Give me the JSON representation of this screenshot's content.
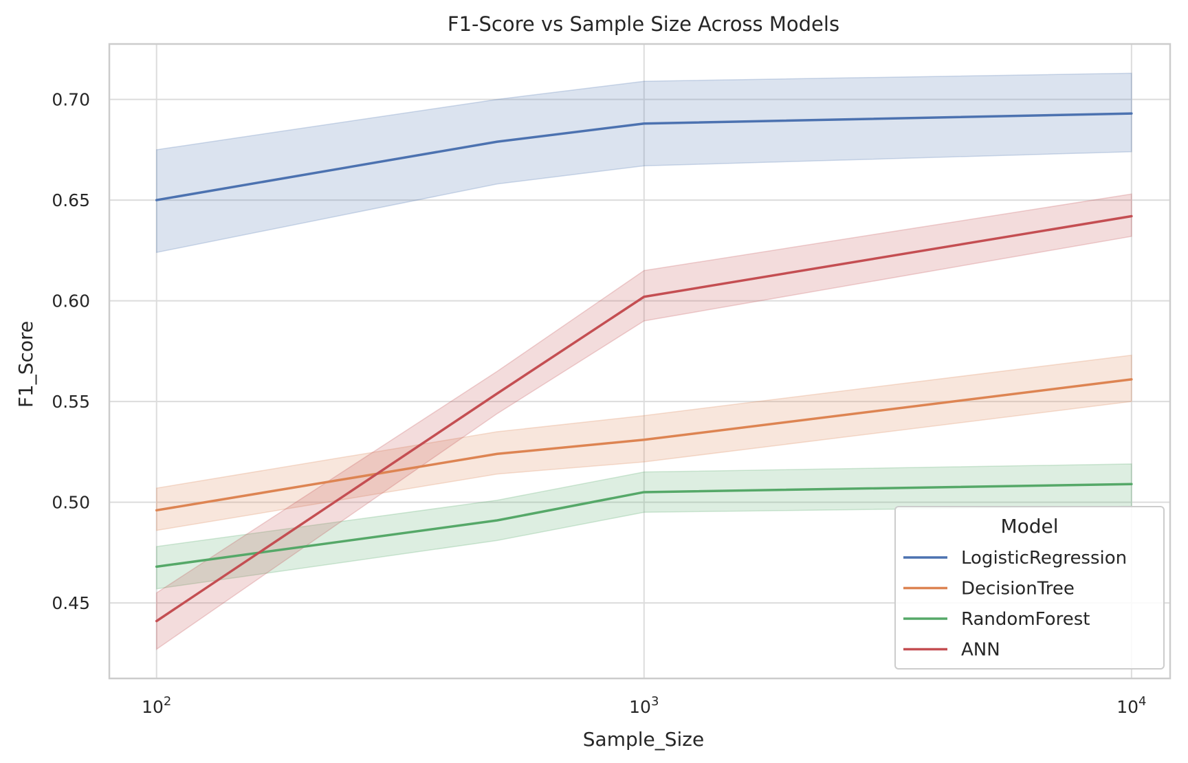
{
  "chart_data": {
    "type": "line",
    "title": "F1-Score vs Sample Size Across Models",
    "xlabel": "Sample_Size",
    "ylabel": "F1_Score",
    "x_scale": "log",
    "xlim": [
      80,
      12000
    ],
    "ylim": [
      0.4125,
      0.7275
    ],
    "x": [
      100,
      500,
      1000,
      10000
    ],
    "x_ticks": [
      {
        "value": 100,
        "base": "10",
        "exp": "2"
      },
      {
        "value": 1000,
        "base": "10",
        "exp": "3"
      },
      {
        "value": 10000,
        "base": "10",
        "exp": "4"
      }
    ],
    "y_ticks": [
      0.45,
      0.5,
      0.55,
      0.6,
      0.65,
      0.7
    ],
    "y_tick_labels": [
      "0.45",
      "0.50",
      "0.55",
      "0.60",
      "0.65",
      "0.70"
    ],
    "grid": true,
    "legend": {
      "title": "Model",
      "position": "lower-right"
    },
    "series": [
      {
        "name": "LogisticRegression",
        "color": "#4c72b0",
        "values": [
          0.65,
          0.679,
          0.688,
          0.693
        ],
        "lower": [
          0.624,
          0.658,
          0.667,
          0.674
        ],
        "upper": [
          0.675,
          0.7,
          0.709,
          0.713
        ]
      },
      {
        "name": "DecisionTree",
        "color": "#dd8452",
        "values": [
          0.496,
          0.524,
          0.531,
          0.561
        ],
        "lower": [
          0.486,
          0.514,
          0.52,
          0.55
        ],
        "upper": [
          0.507,
          0.535,
          0.543,
          0.573
        ]
      },
      {
        "name": "RandomForest",
        "color": "#55a868",
        "values": [
          0.468,
          0.491,
          0.505,
          0.509
        ],
        "lower": [
          0.457,
          0.481,
          0.495,
          0.498
        ],
        "upper": [
          0.478,
          0.501,
          0.515,
          0.519
        ]
      },
      {
        "name": "ANN",
        "color": "#c44e52",
        "values": [
          0.441,
          0.554,
          0.602,
          0.642
        ],
        "lower": [
          0.427,
          0.544,
          0.59,
          0.632
        ],
        "upper": [
          0.455,
          0.565,
          0.615,
          0.653
        ]
      }
    ]
  }
}
